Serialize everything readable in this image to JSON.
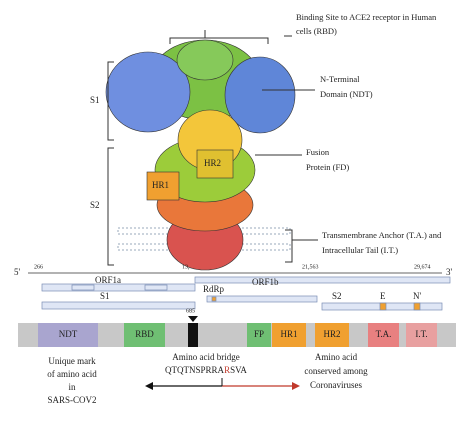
{
  "structure": {
    "rbd_label": [
      "Binding Site to ACE2 receptor in Human",
      "cells (RBD)"
    ],
    "ntd_label": [
      "N-Terminal",
      "Domain (NDT)"
    ],
    "fusion_label": [
      "Fusion",
      "Protein (FD)"
    ],
    "tm_label": [
      "Transmembrane Anchor (T.A.) and",
      "Intracellular Tail (I.T.)"
    ],
    "s1": "S1",
    "s2": "S2",
    "hr1": "HR1",
    "hr2": "HR2"
  },
  "genome": {
    "five": "5'",
    "three": "3'",
    "positions": [
      "266",
      "13,",
      "21,563",
      "29,674"
    ],
    "orf1a": "ORF1a",
    "orf1b": "ORF1b",
    "s1": "S1",
    "rdrp": "RdRp",
    "s2": "S2",
    "e": "E",
    "n": "N'"
  },
  "domains": {
    "marker": "685",
    "segments": [
      "NDT",
      "RBD",
      "FP",
      "HR1",
      "HR2",
      "T.A.",
      "I.T."
    ]
  },
  "notes": {
    "unique": [
      "Unique mark",
      "of amino acid",
      "in",
      "SARS-COV2"
    ],
    "bridge": "Amino acid bridge",
    "sequence": [
      "QTQTNSPRRA",
      "R",
      "SVA"
    ],
    "conserved": [
      "Amino acid",
      "conserved among",
      "Coronaviruses"
    ]
  }
}
